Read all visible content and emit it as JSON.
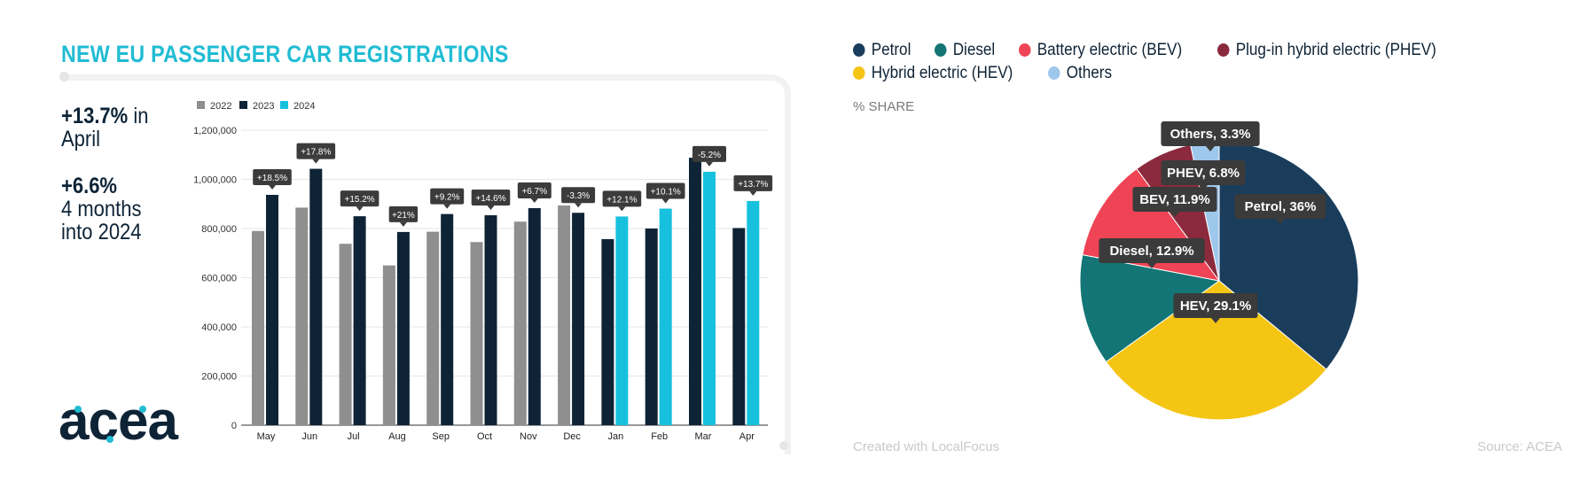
{
  "header": {
    "title": "NEW EU PASSENGER CAR REGISTRATIONS"
  },
  "stats": [
    {
      "value": "+13.7%",
      "text_inline": " in",
      "text_lines": [
        "April"
      ]
    },
    {
      "value": "+6.6%",
      "text_inline": "",
      "text_lines": [
        "4 months",
        "into 2024"
      ]
    }
  ],
  "logo": {
    "text": "acea",
    "color": "#0e2336",
    "accent": "#21bcd3"
  },
  "colors": {
    "y2022": "#8f8f8f",
    "y2023": "#0e2336",
    "y2024": "#17c1dd",
    "callout": "#3b3b3b"
  },
  "chart_data": [
    {
      "type": "bar",
      "title": "",
      "xlabel": "",
      "ylabel": "",
      "ylim": [
        0,
        1200000
      ],
      "yticks": [
        0,
        200000,
        400000,
        600000,
        800000,
        1000000,
        1200000
      ],
      "ytick_labels": [
        "0",
        "200,000",
        "400,000",
        "600,000",
        "800,000",
        "1,000,000",
        "1,200,000"
      ],
      "grid": true,
      "legend": "top-left",
      "series_names": [
        "2022",
        "2023",
        "2024"
      ],
      "categories": [
        {
          "label": "May",
          "bars": [
            {
              "series": "2022",
              "value": 790000
            },
            {
              "series": "2023",
              "value": 937000
            }
          ],
          "change": "+18.5%"
        },
        {
          "label": "Jun",
          "bars": [
            {
              "series": "2022",
              "value": 885000
            },
            {
              "series": "2023",
              "value": 1043000
            }
          ],
          "change": "+17.8%"
        },
        {
          "label": "Jul",
          "bars": [
            {
              "series": "2022",
              "value": 738000
            },
            {
              "series": "2023",
              "value": 850000
            }
          ],
          "change": "+15.2%"
        },
        {
          "label": "Aug",
          "bars": [
            {
              "series": "2022",
              "value": 650000
            },
            {
              "series": "2023",
              "value": 786000
            }
          ],
          "change": "+21%"
        },
        {
          "label": "Sep",
          "bars": [
            {
              "series": "2022",
              "value": 787000
            },
            {
              "series": "2023",
              "value": 859000
            }
          ],
          "change": "+9.2%"
        },
        {
          "label": "Oct",
          "bars": [
            {
              "series": "2022",
              "value": 745000
            },
            {
              "series": "2023",
              "value": 854000
            }
          ],
          "change": "+14.6%"
        },
        {
          "label": "Nov",
          "bars": [
            {
              "series": "2022",
              "value": 828000
            },
            {
              "series": "2023",
              "value": 883000
            }
          ],
          "change": "+6.7%"
        },
        {
          "label": "Dec",
          "bars": [
            {
              "series": "2022",
              "value": 894000
            },
            {
              "series": "2023",
              "value": 864000
            }
          ],
          "change": "-3.3%"
        },
        {
          "label": "Jan",
          "bars": [
            {
              "series": "2023",
              "value": 757000
            },
            {
              "series": "2024",
              "value": 849000
            }
          ],
          "change": "+12.1%"
        },
        {
          "label": "Feb",
          "bars": [
            {
              "series": "2023",
              "value": 800000
            },
            {
              "series": "2024",
              "value": 881000
            }
          ],
          "change": "+10.1%"
        },
        {
          "label": "Mar",
          "bars": [
            {
              "series": "2023",
              "value": 1088000
            },
            {
              "series": "2024",
              "value": 1031000
            }
          ],
          "change": "-5.2%"
        },
        {
          "label": "Apr",
          "bars": [
            {
              "series": "2023",
              "value": 802000
            },
            {
              "series": "2024",
              "value": 912000
            }
          ],
          "change": "+13.7%"
        }
      ]
    },
    {
      "type": "pie",
      "title": "",
      "subtitle": "% SHARE",
      "legend": "top",
      "legend_entries": [
        "Petrol",
        "Diesel",
        "Battery electric (BEV)",
        "Plug-in hybrid electric (PHEV)",
        "Hybrid electric (HEV)",
        "Others"
      ],
      "slices": [
        {
          "name": "Petrol",
          "label": "Petrol, 36%",
          "value": 36,
          "color": "#1a3d5c"
        },
        {
          "name": "Hybrid electric (HEV)",
          "label": "HEV, 29.1%",
          "value": 29.1,
          "color": "#f5c514"
        },
        {
          "name": "Diesel",
          "label": "Diesel, 12.9%",
          "value": 12.9,
          "color": "#137575"
        },
        {
          "name": "Battery electric (BEV)",
          "label": "BEV, 11.9%",
          "value": 11.9,
          "color": "#ee4455"
        },
        {
          "name": "Plug-in hybrid electric (PHEV)",
          "label": "PHEV, 6.8%",
          "value": 6.8,
          "color": "#8b2a3d"
        },
        {
          "name": "Others",
          "label": "Others, 3.3%",
          "value": 3.3,
          "color": "#9ec7ec"
        }
      ]
    }
  ],
  "footer": {
    "created": "Created with LocalFocus",
    "source": "Source: ACEA"
  }
}
